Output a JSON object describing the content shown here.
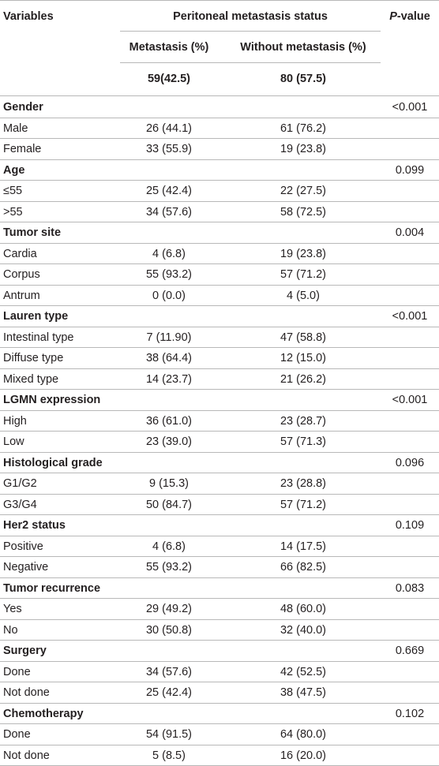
{
  "header": {
    "variables": "Variables",
    "group_title": "Peritoneal metastasis status",
    "p_value_italic": "P",
    "p_value_rest": "-value",
    "metastasis": "Metastasis (%)",
    "without_metastasis": "Without metastasis (%)",
    "n_metastasis": "59(42.5)",
    "n_without": "80 (57.5)"
  },
  "rows": [
    {
      "label": "Gender",
      "section": true,
      "p": "<0.001"
    },
    {
      "label": "Male",
      "met": "26 (44.1)",
      "wo": "61 (76.2)"
    },
    {
      "label": "Female",
      "met": "33 (55.9)",
      "wo": "19 (23.8)"
    },
    {
      "label": "Age",
      "section": true,
      "p": "0.099"
    },
    {
      "label": "≤55",
      "met": "25 (42.4)",
      "wo": "22 (27.5)"
    },
    {
      "label": ">55",
      "met": "34 (57.6)",
      "wo": "58 (72.5)"
    },
    {
      "label": "Tumor site",
      "section": true,
      "p": "0.004"
    },
    {
      "label": "Cardia",
      "met": "4 (6.8)",
      "wo": "19 (23.8)"
    },
    {
      "label": "Corpus",
      "met": "55 (93.2)",
      "wo": "57 (71.2)"
    },
    {
      "label": "Antrum",
      "met": "0 (0.0)",
      "wo": "4 (5.0)"
    },
    {
      "label": "Lauren type",
      "section": true,
      "p": "<0.001"
    },
    {
      "label": "Intestinal type",
      "met": "7 (11.90)",
      "wo": "47 (58.8)"
    },
    {
      "label": "Diffuse type",
      "met": "38 (64.4)",
      "wo": "12 (15.0)"
    },
    {
      "label": "Mixed type",
      "met": "14 (23.7)",
      "wo": "21 (26.2)"
    },
    {
      "label": "LGMN expression",
      "section": true,
      "p": "<0.001"
    },
    {
      "label": "High",
      "met": "36 (61.0)",
      "wo": "23 (28.7)"
    },
    {
      "label": "Low",
      "met": "23 (39.0)",
      "wo": "57 (71.3)"
    },
    {
      "label": "Histological grade",
      "section": true,
      "p": "0.096"
    },
    {
      "label": "G1/G2",
      "met": "9 (15.3)",
      "wo": "23 (28.8)"
    },
    {
      "label": "G3/G4",
      "met": "50 (84.7)",
      "wo": "57 (71.2)"
    },
    {
      "label": "Her2 status",
      "section": true,
      "p": "0.109"
    },
    {
      "label": "Positive",
      "met": "4 (6.8)",
      "wo": "14 (17.5)"
    },
    {
      "label": "Negative",
      "met": "55 (93.2)",
      "wo": "66 (82.5)"
    },
    {
      "label": "Tumor recurrence",
      "section": true,
      "p": "0.083"
    },
    {
      "label": "Yes",
      "met": "29 (49.2)",
      "wo": "48 (60.0)"
    },
    {
      "label": "No",
      "met": "30 (50.8)",
      "wo": "32 (40.0)"
    },
    {
      "label": "Surgery",
      "section": true,
      "p": "0.669"
    },
    {
      "label": "Done",
      "met": "34 (57.6)",
      "wo": "42 (52.5)"
    },
    {
      "label": "Not done",
      "met": "25 (42.4)",
      "wo": "38 (47.5)"
    },
    {
      "label": "Chemotherapy",
      "section": true,
      "p": "0.102"
    },
    {
      "label": "Done",
      "met": "54 (91.5)",
      "wo": "64 (80.0)"
    },
    {
      "label": "Not done",
      "met": "5 (8.5)",
      "wo": "16 (20.0)"
    }
  ]
}
